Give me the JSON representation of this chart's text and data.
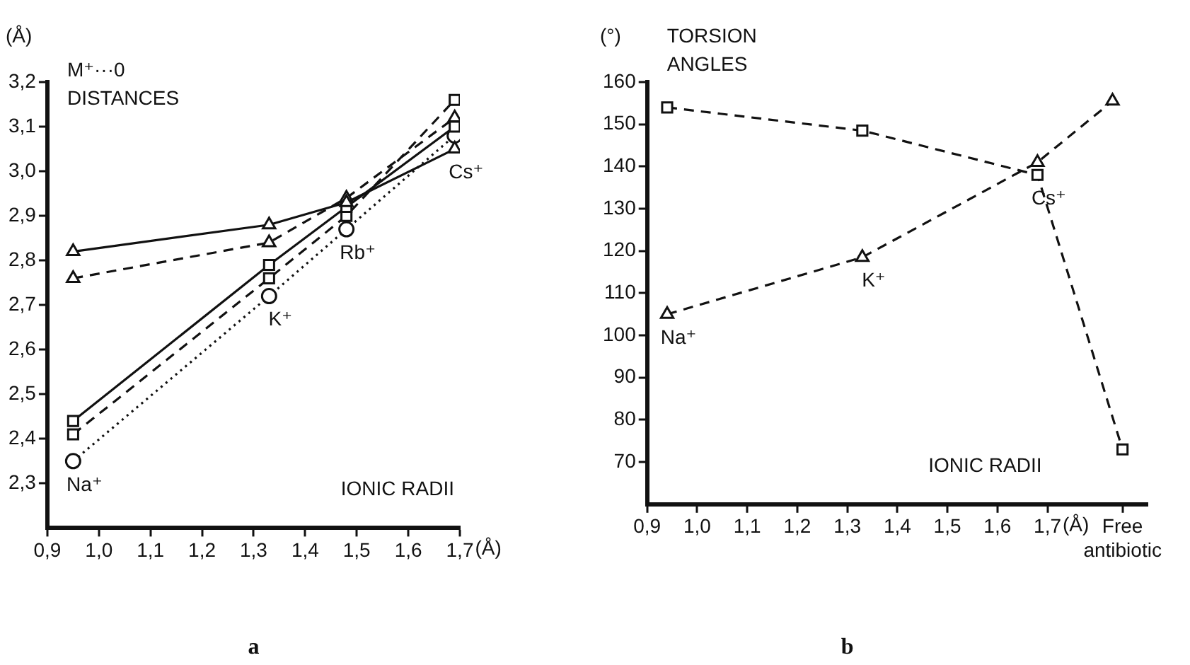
{
  "chart_data": [
    {
      "type": "line",
      "title": "M⁺···0 DISTANCES",
      "subtitle": "a",
      "ylabel": "(Å)",
      "xlabel": "(Å)",
      "x": [
        0.95,
        1.33,
        1.48,
        1.69
      ],
      "series": [
        {
          "color": "#111111",
          "marker": "triangle",
          "line_style": "solid",
          "values": [
            2.82,
            2.88,
            2.93,
            3.05
          ]
        },
        {
          "color": "#111111",
          "marker": "triangle",
          "line_style": "dashed",
          "values": [
            2.76,
            2.84,
            2.94,
            3.12
          ]
        },
        {
          "color": "#111111",
          "marker": "square",
          "line_style": "solid",
          "values": [
            2.44,
            2.79,
            2.92,
            3.1
          ]
        },
        {
          "color": "#111111",
          "marker": "square",
          "line_style": "dashed",
          "values": [
            2.41,
            2.76,
            2.9,
            3.16
          ]
        },
        {
          "color": "#111111",
          "marker": "circle",
          "line_style": "dotted",
          "values": [
            2.35,
            2.72,
            2.87,
            3.08
          ]
        }
      ],
      "xlim": [
        0.9,
        1.7
      ],
      "xticks": [
        {
          "value": 0.9,
          "label": "0,9"
        },
        {
          "value": 1.0,
          "label": "1,0"
        },
        {
          "value": 1.1,
          "label": "1,1"
        },
        {
          "value": 1.2,
          "label": "1,2"
        },
        {
          "value": 1.3,
          "label": "1,3"
        },
        {
          "value": 1.4,
          "label": "1,4"
        },
        {
          "value": 1.5,
          "label": "1,5"
        },
        {
          "value": 1.6,
          "label": "1,6"
        },
        {
          "value": 1.7,
          "label": "1,7"
        }
      ],
      "ylim": [
        2.2,
        3.2
      ],
      "yticks": [
        {
          "value": 2.3,
          "label": "2,3"
        },
        {
          "value": 2.4,
          "label": "2,4"
        },
        {
          "value": 2.5,
          "label": "2,5"
        },
        {
          "value": 2.6,
          "label": "2,6"
        },
        {
          "value": 2.7,
          "label": "2,7"
        },
        {
          "value": 2.8,
          "label": "2,8"
        },
        {
          "value": 2.9,
          "label": "2,9"
        },
        {
          "value": 3.0,
          "label": "3,0"
        },
        {
          "value": 3.1,
          "label": "3,1"
        },
        {
          "value": 3.2,
          "label": "3,2"
        }
      ],
      "annotations": [
        {
          "text": "Na⁺",
          "x": 0.95,
          "y": 2.35
        },
        {
          "text": "K⁺",
          "x": 1.33,
          "y": 2.72
        },
        {
          "text": "Rb⁺",
          "x": 1.48,
          "y": 2.87
        },
        {
          "text": "Cs⁺",
          "x": 1.69,
          "y": 3.05
        },
        "IONIC RADII"
      ],
      "grid": false,
      "legend": false
    },
    {
      "type": "line",
      "title": "TORSION ANGLES",
      "subtitle": "b",
      "ylabel": "(°)",
      "xlabel": "(Å)",
      "series": [
        {
          "color": "#111111",
          "marker": "square",
          "line_style": "dashed",
          "x": [
            0.94,
            1.33,
            1.68,
            1.85
          ],
          "values": [
            154,
            148.5,
            138,
            73
          ]
        },
        {
          "color": "#111111",
          "marker": "triangle",
          "line_style": "dashed",
          "x": [
            0.94,
            1.33,
            1.68,
            1.83
          ],
          "values": [
            105,
            118.5,
            141,
            155.5
          ]
        }
      ],
      "xlim": [
        0.9,
        1.9
      ],
      "xticks": [
        {
          "value": 0.9,
          "label": "0,9"
        },
        {
          "value": 1.0,
          "label": "1,0"
        },
        {
          "value": 1.1,
          "label": "1,1"
        },
        {
          "value": 1.2,
          "label": "1,2"
        },
        {
          "value": 1.3,
          "label": "1,3"
        },
        {
          "value": 1.4,
          "label": "1,4"
        },
        {
          "value": 1.5,
          "label": "1,5"
        },
        {
          "value": 1.6,
          "label": "1,6"
        },
        {
          "value": 1.7,
          "label": "1,7"
        },
        {
          "value": 1.85,
          "label": "Free antibiotic"
        }
      ],
      "ylim": [
        60,
        160
      ],
      "yticks": [
        70,
        80,
        90,
        100,
        110,
        120,
        130,
        140,
        150,
        160
      ],
      "annotations": [
        {
          "text": "Na⁺",
          "x": 0.94,
          "y": 105
        },
        {
          "text": "K⁺",
          "x": 1.33,
          "y": 118.5
        },
        {
          "text": "Cs⁺",
          "x": 1.68,
          "y": 138
        },
        "IONIC RADII"
      ],
      "grid": false,
      "legend": false
    }
  ]
}
